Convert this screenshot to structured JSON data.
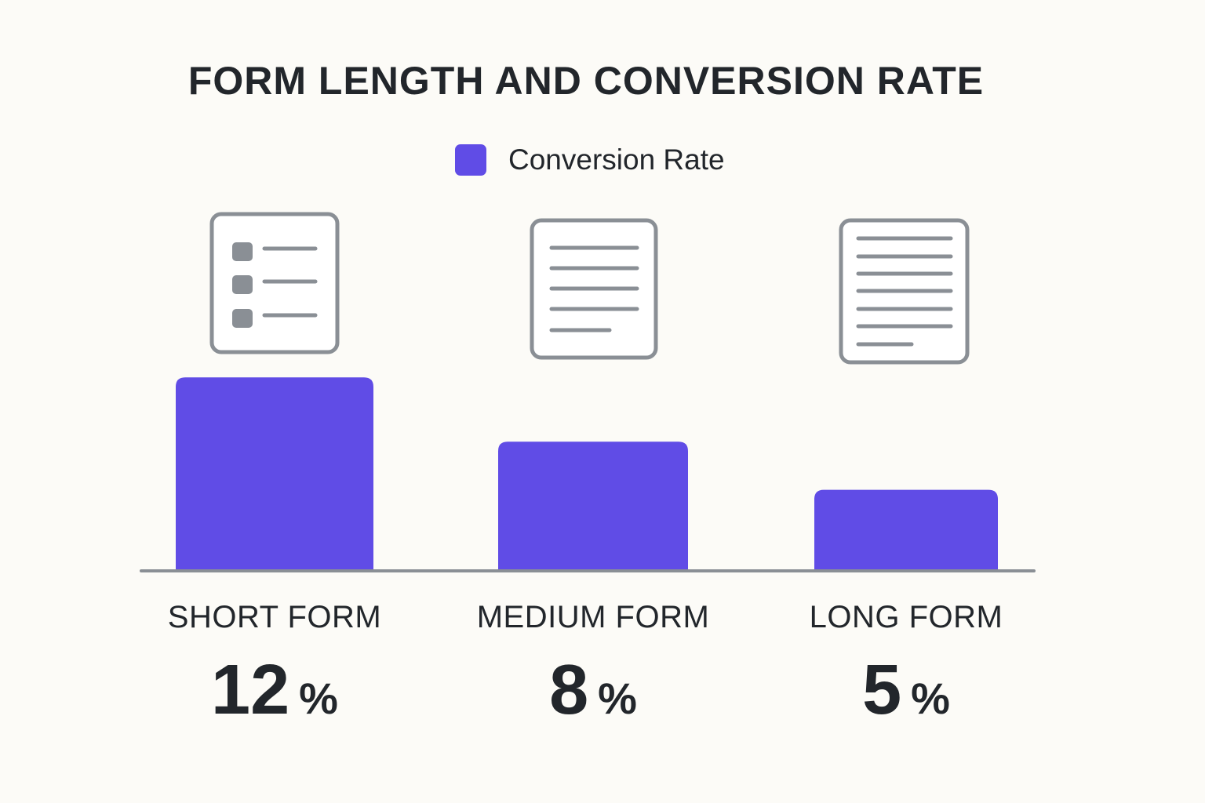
{
  "chart_data": {
    "type": "bar",
    "title": "FORM LENGTH AND CONVERSION RATE",
    "categories": [
      "SHORT FORM",
      "MEDIUM FORM",
      "LONG FORM"
    ],
    "series": [
      {
        "name": "Conversion Rate",
        "values": [
          12,
          8,
          5
        ]
      }
    ],
    "value_labels": [
      "12",
      "8",
      "5"
    ],
    "unit": "%",
    "ylim": [
      0,
      12.6
    ],
    "grid": false,
    "legend": "top-center",
    "bar_color": "#604ce6",
    "category_icons": [
      "checklist-form-icon",
      "medium-form-icon",
      "long-form-icon"
    ]
  }
}
